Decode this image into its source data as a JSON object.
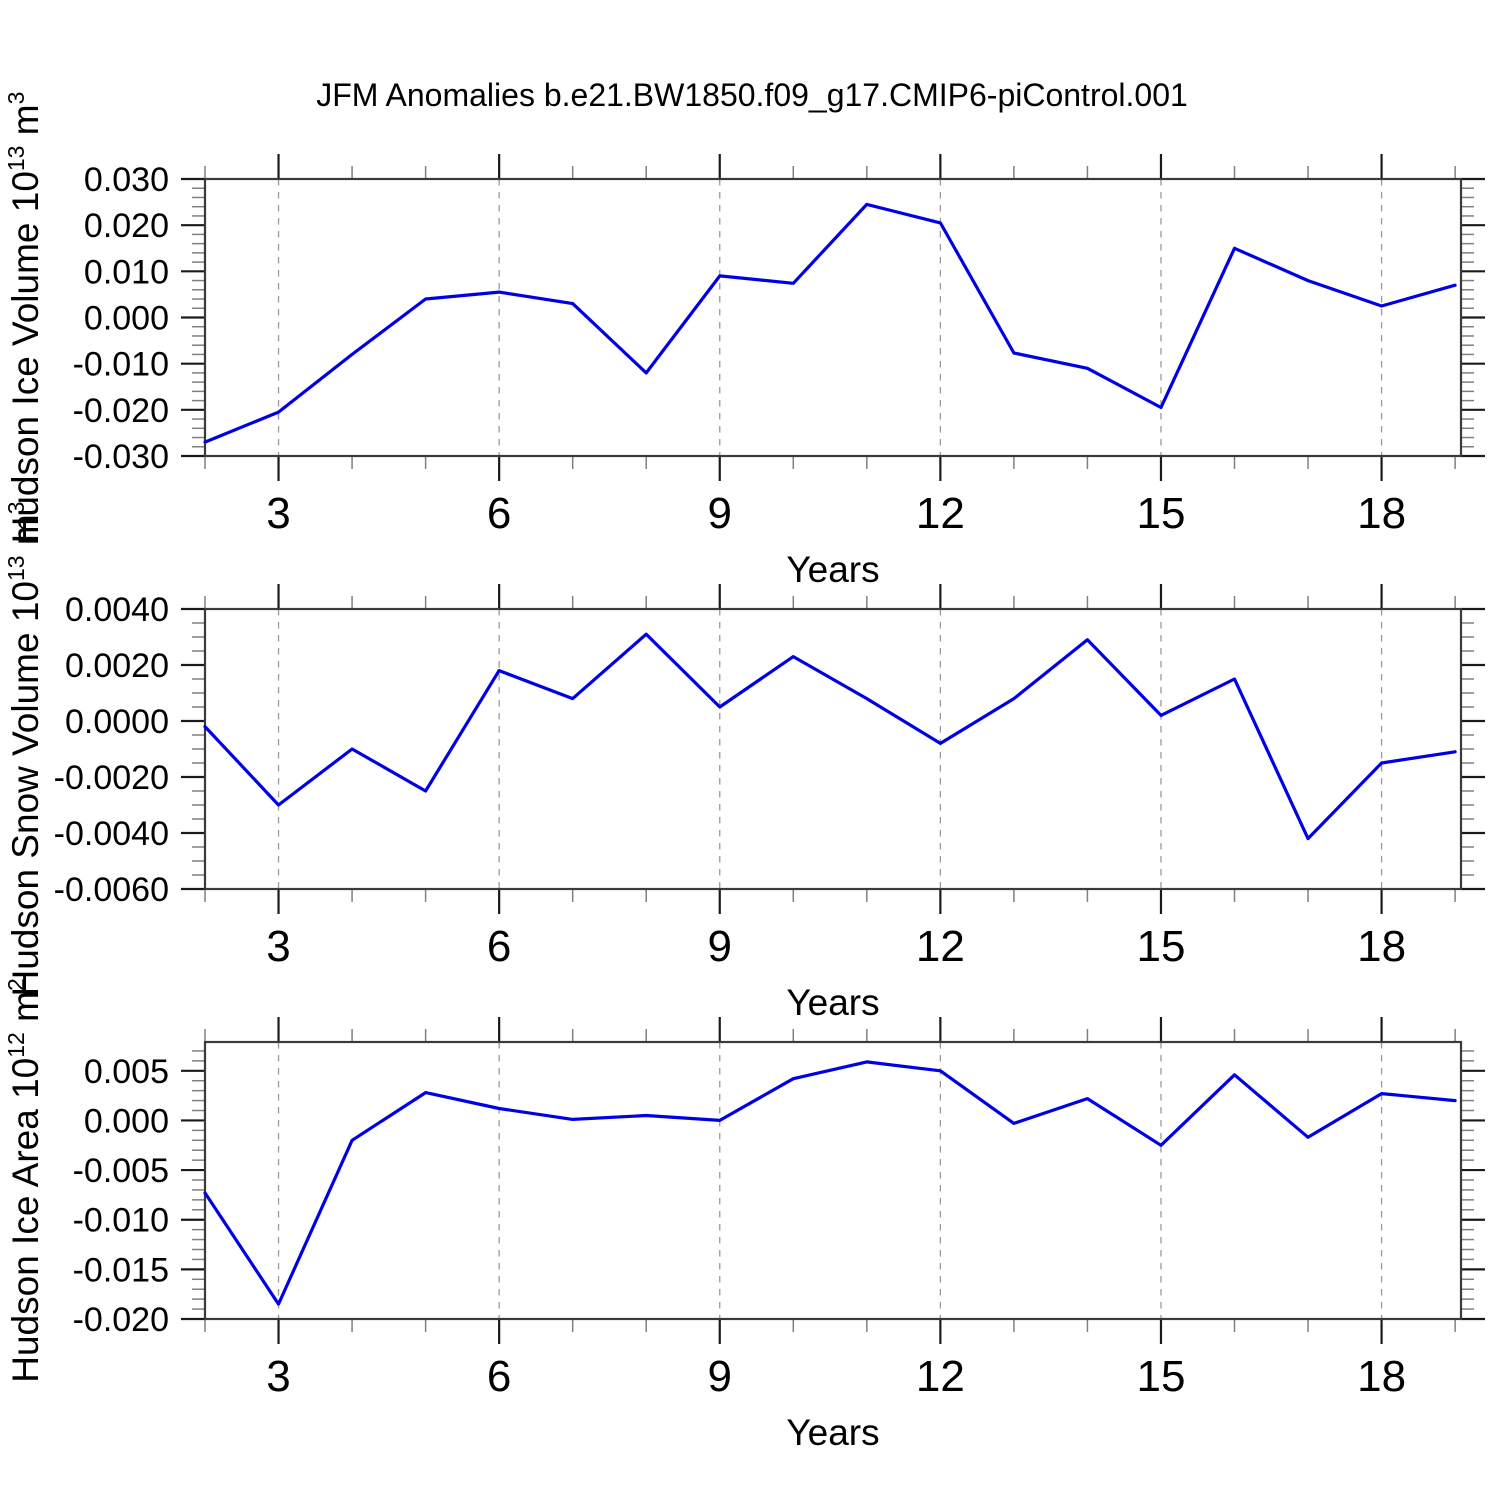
{
  "title": "JFM Anomalies b.e21.BW1850.f09_g17.CMIP6-piControl.001",
  "line_color": "#0000e6",
  "grid_color": "#9a9a9a",
  "frame_color": "#3a3a3a",
  "major_tick_color": "#1a1a1a",
  "minor_tick_color": "#808080",
  "chart_data": [
    {
      "type": "line",
      "title": "JFM Anomalies b.e21.BW1850.f09_g17.CMIP6-piControl.001",
      "ylabel": "Hudson Ice Volume 10^13 m^3",
      "ylabel_parts": {
        "base": "Hudson Ice Volume 10",
        "exp": "13",
        "mid": " m",
        "exp2": "3"
      },
      "xlabel": "Years",
      "x": [
        2,
        3,
        4,
        5,
        6,
        7,
        8,
        9,
        10,
        11,
        12,
        13,
        14,
        15,
        16,
        17,
        18,
        19
      ],
      "values": [
        -0.027,
        -0.0205,
        -0.008,
        0.004,
        0.0055,
        0.003,
        -0.012,
        0.009,
        0.0074,
        0.0245,
        0.0205,
        -0.0077,
        -0.011,
        -0.0195,
        0.015,
        0.008,
        0.0025,
        0.007
      ],
      "xlim": [
        2,
        19.08
      ],
      "ylim": [
        -0.03,
        0.03
      ],
      "x_major_ticks": [
        3,
        6,
        9,
        12,
        15,
        18
      ],
      "x_tick_labels": [
        "3",
        "6",
        "9",
        "12",
        "15",
        "18"
      ],
      "x_minor_step": 1,
      "y_major_ticks": [
        0.03,
        0.02,
        0.01,
        0.0,
        -0.01,
        -0.02,
        -0.03
      ],
      "y_tick_labels": [
        "0.030",
        "0.020",
        "0.010",
        "0.000",
        "-0.010",
        "-0.020",
        "-0.030"
      ],
      "y_minor_step": 0.002,
      "grid_x": true,
      "grid_y": false,
      "legend": "none"
    },
    {
      "type": "line",
      "ylabel": "Hudson Snow Volume 10^13 m^3",
      "ylabel_parts": {
        "base": "Hudson Snow Volume 10",
        "exp": "13",
        "mid": " m",
        "exp2": "3"
      },
      "xlabel": "Years",
      "x": [
        2,
        3,
        4,
        5,
        6,
        7,
        8,
        9,
        10,
        11,
        12,
        13,
        14,
        15,
        16,
        17,
        18,
        19
      ],
      "values": [
        -0.0002,
        -0.003,
        -0.001,
        -0.0025,
        0.0018,
        0.0008,
        0.0031,
        0.0005,
        0.0023,
        0.0008,
        -0.0008,
        0.0008,
        0.0029,
        0.0002,
        0.0015,
        -0.0042,
        -0.0015,
        -0.0011
      ],
      "xlim": [
        2,
        19.08
      ],
      "ylim": [
        -0.006,
        0.004
      ],
      "x_major_ticks": [
        3,
        6,
        9,
        12,
        15,
        18
      ],
      "x_tick_labels": [
        "3",
        "6",
        "9",
        "12",
        "15",
        "18"
      ],
      "x_minor_step": 1,
      "y_major_ticks": [
        0.004,
        0.002,
        0.0,
        -0.002,
        -0.004,
        -0.006
      ],
      "y_tick_labels": [
        "0.0040",
        "0.0020",
        "0.0000",
        "-0.0020",
        "-0.0040",
        "-0.0060"
      ],
      "y_minor_step": 0.0005,
      "grid_x": true,
      "grid_y": false,
      "legend": "none"
    },
    {
      "type": "line",
      "ylabel": "Hudson Ice Area 10^12 m^2",
      "ylabel_parts": {
        "base": "Hudson Ice Area 10",
        "exp": "12",
        "mid": " m",
        "exp2": "2"
      },
      "xlabel": "Years",
      "x": [
        2,
        3,
        4,
        5,
        6,
        7,
        8,
        9,
        10,
        11,
        12,
        13,
        14,
        15,
        16,
        17,
        18,
        19
      ],
      "values": [
        -0.0073,
        -0.0185,
        -0.002,
        0.0028,
        0.0012,
        0.0001,
        0.0005,
        0.0,
        0.0042,
        0.0059,
        0.005,
        -0.0003,
        0.0022,
        -0.0025,
        0.0046,
        -0.0017,
        0.0027,
        0.002
      ],
      "xlim": [
        2,
        19.08
      ],
      "ylim": [
        -0.02,
        0.0079
      ],
      "x_major_ticks": [
        3,
        6,
        9,
        12,
        15,
        18
      ],
      "x_tick_labels": [
        "3",
        "6",
        "9",
        "12",
        "15",
        "18"
      ],
      "x_minor_step": 1,
      "y_major_ticks": [
        0.005,
        0.0,
        -0.005,
        -0.01,
        -0.015,
        -0.02
      ],
      "y_tick_labels": [
        "0.005",
        "0.000",
        "-0.005",
        "-0.010",
        "-0.015",
        "-0.020"
      ],
      "y_minor_step": 0.001,
      "grid_x": true,
      "grid_y": false,
      "legend": "none"
    }
  ]
}
